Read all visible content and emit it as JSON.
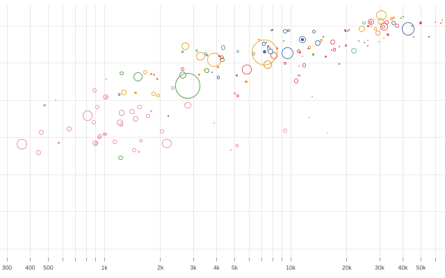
{
  "chart_data": {
    "type": "scatter",
    "title": "",
    "subtitle": "",
    "legend": "none",
    "grid": "on",
    "x_axis": {
      "scale": "log",
      "domain": [
        300,
        60000
      ],
      "ticks": [
        {
          "value": 300,
          "label": "300"
        },
        {
          "value": 400,
          "label": "400"
        },
        {
          "value": 500,
          "label": "500"
        },
        {
          "value": 600,
          "label": ""
        },
        {
          "value": 700,
          "label": ""
        },
        {
          "value": 800,
          "label": ""
        },
        {
          "value": 900,
          "label": ""
        },
        {
          "value": 1000,
          "label": "1k"
        },
        {
          "value": 2000,
          "label": "2k"
        },
        {
          "value": 3000,
          "label": "3k"
        },
        {
          "value": 4000,
          "label": "4k"
        },
        {
          "value": 5000,
          "label": "5k"
        },
        {
          "value": 6000,
          "label": ""
        },
        {
          "value": 7000,
          "label": ""
        },
        {
          "value": 8000,
          "label": ""
        },
        {
          "value": 9000,
          "label": ""
        },
        {
          "value": 10000,
          "label": "10k"
        },
        {
          "value": 20000,
          "label": "20k"
        },
        {
          "value": 30000,
          "label": "30k"
        },
        {
          "value": 40000,
          "label": "40k"
        },
        {
          "value": 50000,
          "label": "50k"
        },
        {
          "value": 60000,
          "label": ""
        }
      ]
    },
    "y_axis": {
      "labels": "none",
      "gridline_count": 7
    },
    "x_pixel_mapping": "x_px = 10 + 268 * log10(value/300)",
    "palette": {
      "P": "#ef8fa8",
      "R": "#e15759",
      "O": "#f28e2c",
      "Y": "#e9a92d",
      "G": "#59a14f",
      "T": "#76b7b2",
      "B": "#4e79a7",
      "N": "#4a577d"
    },
    "palette_names": {
      "P": "pink",
      "R": "red",
      "O": "orange",
      "Y": "yellow-gold",
      "G": "green",
      "T": "teal",
      "B": "blue",
      "N": "dark-navy"
    },
    "points_format": "[x_px, y_px, radius_px, color_key, optional_f_filled]",
    "points": [
      [
        136,
        129.7,
        3,
        "P"
      ],
      [
        152,
        139.7,
        3.8,
        "P"
      ],
      [
        80,
        144,
        1.4,
        "P"
      ],
      [
        64,
        151.7,
        1.6,
        "P"
      ],
      [
        140,
        154.3,
        3,
        "P"
      ],
      [
        126,
        166.3,
        7.3,
        "P"
      ],
      [
        135,
        176,
        3,
        "P"
      ],
      [
        99.3,
        185.7,
        3.6,
        "P"
      ],
      [
        59.3,
        190.3,
        3.3,
        "P"
      ],
      [
        144,
        196,
        2.6,
        "P"
      ],
      [
        151.7,
        193,
        2.3,
        "P"
      ],
      [
        136.7,
        206,
        4,
        "P"
      ],
      [
        138,
        206.5,
        2.3,
        "P"
      ],
      [
        84.7,
        205.3,
        1.3,
        "P"
      ],
      [
        31.7,
        207.7,
        7.3,
        "P"
      ],
      [
        55.7,
        219.3,
        3.6,
        "P"
      ],
      [
        152.7,
        114,
        1.2,
        "P"
      ],
      [
        153.3,
        140,
        2.3,
        "P"
      ],
      [
        200.7,
        154,
        3.3,
        "P"
      ],
      [
        190,
        160.7,
        3.6,
        "P"
      ],
      [
        175,
        162.3,
        4.3,
        "P"
      ],
      [
        212.7,
        167.3,
        3,
        "P"
      ],
      [
        217.3,
        160,
        1.4,
        "P"
      ],
      [
        195,
        171,
        4,
        "P"
      ],
      [
        172.7,
        176.7,
        4.3,
        "P"
      ],
      [
        174.3,
        179,
        2.6,
        "P"
      ],
      [
        270,
        151.7,
        4.6,
        "P"
      ],
      [
        232.7,
        189.3,
        3,
        "P"
      ],
      [
        150,
        193.3,
        2,
        "P"
      ],
      [
        142.7,
        197.3,
        2.3,
        "P"
      ],
      [
        165,
        204,
        2.6,
        "P"
      ],
      [
        202.7,
        202.7,
        2.6,
        "P"
      ],
      [
        240,
        206.7,
        6.7,
        "P"
      ],
      [
        193.3,
        216,
        3,
        "P"
      ],
      [
        200,
        218.3,
        1.4,
        "P"
      ],
      [
        221.7,
        107.3,
        1.4,
        "P"
      ],
      [
        337.7,
        134.7,
        1.3,
        "P"
      ],
      [
        449,
        139.3,
        1,
        "P"
      ],
      [
        307.7,
        177.3,
        1,
        "P"
      ],
      [
        444.7,
        169.3,
        1,
        "P"
      ],
      [
        410,
        188,
        3.3,
        "P"
      ],
      [
        471,
        191.7,
        0.8,
        "P"
      ],
      [
        341,
        209.3,
        2.3,
        "P"
      ],
      [
        332.3,
        215.7,
        1,
        "P"
      ],
      [
        435,
        80.7,
        1.2,
        "P"
      ],
      [
        430,
        95,
        1.2,
        "P"
      ],
      [
        430,
        108.3,
        1.6,
        "P"
      ],
      [
        529.3,
        58,
        1,
        "P"
      ],
      [
        175,
        105.7,
        2.7,
        "G"
      ],
      [
        198.3,
        110.7,
        6.7,
        "G"
      ],
      [
        270,
        123.5,
        18.4,
        "G"
      ],
      [
        263,
        108,
        5.3,
        "G"
      ],
      [
        173.3,
        227,
        3.3,
        "G"
      ],
      [
        321,
        68.5,
        3.4,
        "G"
      ],
      [
        297.3,
        101.2,
        3.7,
        "G"
      ],
      [
        340.7,
        108.3,
        1.4,
        "G"
      ],
      [
        386.7,
        69.3,
        2.3,
        "G"
      ],
      [
        450.7,
        78.3,
        1.4,
        "G"
      ],
      [
        516,
        59.3,
        1.2,
        "G"
      ],
      [
        524,
        60.7,
        1.2,
        "G"
      ],
      [
        576.7,
        26.3,
        1.2,
        "G"
      ],
      [
        580,
        24,
        1.2,
        "G"
      ],
      [
        443.5,
        70,
        1.2,
        "G"
      ],
      [
        319.5,
        86,
        3.3,
        "G"
      ],
      [
        248.3,
        126.7,
        2.7,
        "T"
      ],
      [
        282.7,
        72.7,
        2,
        "T"
      ],
      [
        296,
        77.3,
        2,
        "T"
      ],
      [
        341.7,
        74.3,
        2,
        "T"
      ],
      [
        365,
        77.7,
        2.3,
        "T"
      ],
      [
        509,
        73.3,
        4,
        "T"
      ],
      [
        523.3,
        33,
        2.3,
        "T"
      ],
      [
        209,
        104,
        3.3,
        "Y"
      ],
      [
        178.3,
        133.3,
        4,
        "Y"
      ],
      [
        195,
        133.3,
        1.6,
        "Y"
      ],
      [
        221,
        135,
        2.6,
        "Y"
      ],
      [
        227.3,
        137.7,
        2.3,
        "Y"
      ],
      [
        266.7,
        66.7,
        5.7,
        "Y"
      ],
      [
        288.3,
        81,
        6.3,
        "Y"
      ],
      [
        308,
        86,
        9.7,
        "Y"
      ],
      [
        294,
        100.7,
        1.4,
        "Y"
      ],
      [
        380,
        75.3,
        18.5,
        "Y"
      ],
      [
        548.3,
        22,
        7.3,
        "Y"
      ],
      [
        547.3,
        30.7,
        4.3,
        "Y"
      ],
      [
        540,
        41.3,
        2.3,
        "Y"
      ],
      [
        520.7,
        41.7,
        4.6,
        "Y"
      ],
      [
        592.7,
        37.3,
        1.7,
        "Y"
      ],
      [
        551.7,
        54.7,
        1,
        "Y"
      ],
      [
        545,
        59.7,
        1,
        "Y"
      ],
      [
        590,
        49.7,
        1,
        "Y"
      ],
      [
        217.3,
        106.7,
        1.6,
        "O"
      ],
      [
        286,
        107,
        1.5,
        "O"
      ],
      [
        372.3,
        57,
        1.4,
        "O"
      ],
      [
        390.7,
        43.3,
        1.3,
        "O"
      ],
      [
        354,
        117.3,
        1.6,
        "O"
      ],
      [
        313.3,
        96.7,
        1.3,
        "O"
      ],
      [
        385,
        93.3,
        6,
        "O"
      ],
      [
        543.3,
        47.3,
        3.3,
        "O"
      ],
      [
        563.3,
        27.3,
        2,
        "O"
      ],
      [
        566.7,
        25.3,
        1.7,
        "O"
      ],
      [
        534,
        38,
        1.3,
        "O"
      ],
      [
        626,
        32,
        1.2,
        "O"
      ],
      [
        636,
        29.3,
        1,
        "O"
      ],
      [
        445,
        68.3,
        2.4,
        "O"
      ],
      [
        462.3,
        58,
        2,
        "O"
      ],
      [
        316.7,
        81,
        1.2,
        "O"
      ],
      [
        262.7,
        99.7,
        2.3,
        "R"
      ],
      [
        226,
        113.3,
        1.3,
        "R"
      ],
      [
        319,
        82.3,
        2.6,
        "R"
      ],
      [
        355,
        100,
        6.6,
        "R"
      ],
      [
        341.7,
        138.3,
        2,
        "R"
      ],
      [
        393.5,
        79.5,
        5,
        "R"
      ],
      [
        399,
        69.3,
        1.3,
        "R"
      ],
      [
        385,
        66,
        1.5,
        "R"
      ],
      [
        408.3,
        59,
        1.2,
        "R"
      ],
      [
        410,
        91,
        2.3,
        "R"
      ],
      [
        429.3,
        73.3,
        2.6,
        "R"
      ],
      [
        431.3,
        75.3,
        1.6,
        "R"
      ],
      [
        426,
        116.7,
        3.3,
        "R"
      ],
      [
        437.3,
        94,
        2.6,
        "R"
      ],
      [
        430,
        75,
        1.2,
        "R"
      ],
      [
        478.3,
        60.7,
        3.6,
        "R"
      ],
      [
        481,
        71.7,
        2.3,
        "R"
      ],
      [
        477.3,
        72.3,
        1,
        "R"
      ],
      [
        468.7,
        81,
        1.5,
        "R"
      ],
      [
        488.3,
        67,
        1.2,
        "R"
      ],
      [
        497.3,
        65.3,
        1.6,
        "R"
      ],
      [
        496.7,
        43.3,
        1.6,
        "R"
      ],
      [
        529,
        66,
        1.2,
        "R"
      ],
      [
        533.3,
        31.7,
        4.6,
        "R"
      ],
      [
        533,
        32,
        2.4,
        "R"
      ],
      [
        529.3,
        37.3,
        1.3,
        "R"
      ],
      [
        552.3,
        38.7,
        5.3,
        "R"
      ],
      [
        551.7,
        38.7,
        2.6,
        "R"
      ],
      [
        556,
        32,
        2.6,
        "R"
      ],
      [
        557.3,
        49.7,
        1.3,
        "R"
      ],
      [
        559.3,
        50.7,
        1.2,
        "R"
      ],
      [
        570.7,
        37.3,
        3,
        "R"
      ],
      [
        605,
        33,
        1.6,
        "R"
      ],
      [
        634,
        32.7,
        1.2,
        "R"
      ],
      [
        595,
        52.7,
        1,
        "R"
      ],
      [
        500,
        44.7,
        1.2,
        "R"
      ],
      [
        171.7,
        136,
        1.7,
        "B"
      ],
      [
        262.3,
        74.3,
        1.7,
        "B"
      ],
      [
        297.3,
        79.3,
        1.7,
        "B"
      ],
      [
        315,
        80.7,
        1.3,
        "B"
      ],
      [
        305,
        103.8,
        1.3,
        "B"
      ],
      [
        314,
        111.7,
        2.3,
        "B"
      ],
      [
        379.3,
        63,
        2.6,
        "B"
      ],
      [
        383.3,
        61,
        1,
        "B"
      ],
      [
        389.3,
        73.5,
        4,
        "B"
      ],
      [
        380.7,
        74.7,
        2.7,
        "B",
        "f"
      ],
      [
        413.3,
        76.7,
        8.6,
        "B"
      ],
      [
        410,
        45,
        2.6,
        "B"
      ],
      [
        415.3,
        44.3,
        2,
        "B"
      ],
      [
        435,
        56.7,
        5,
        "B"
      ],
      [
        451.3,
        45.7,
        2.4,
        "B"
      ],
      [
        457.3,
        61.7,
        4,
        "B"
      ],
      [
        566,
        33,
        3.3,
        "B"
      ],
      [
        586.7,
        41.5,
        9.2,
        "B"
      ],
      [
        435,
        57,
        1.6,
        "N"
      ],
      [
        241.7,
        166.7,
        0.9,
        "N"
      ],
      [
        488,
        92,
        1,
        "N"
      ],
      [
        465,
        52.7,
        1,
        "N"
      ],
      [
        501.7,
        42.7,
        1,
        "N"
      ],
      [
        616.7,
        53.3,
        1,
        "N"
      ],
      [
        391.7,
        42.7,
        1,
        "N"
      ],
      [
        496.7,
        44.7,
        1.2,
        "N"
      ]
    ]
  }
}
